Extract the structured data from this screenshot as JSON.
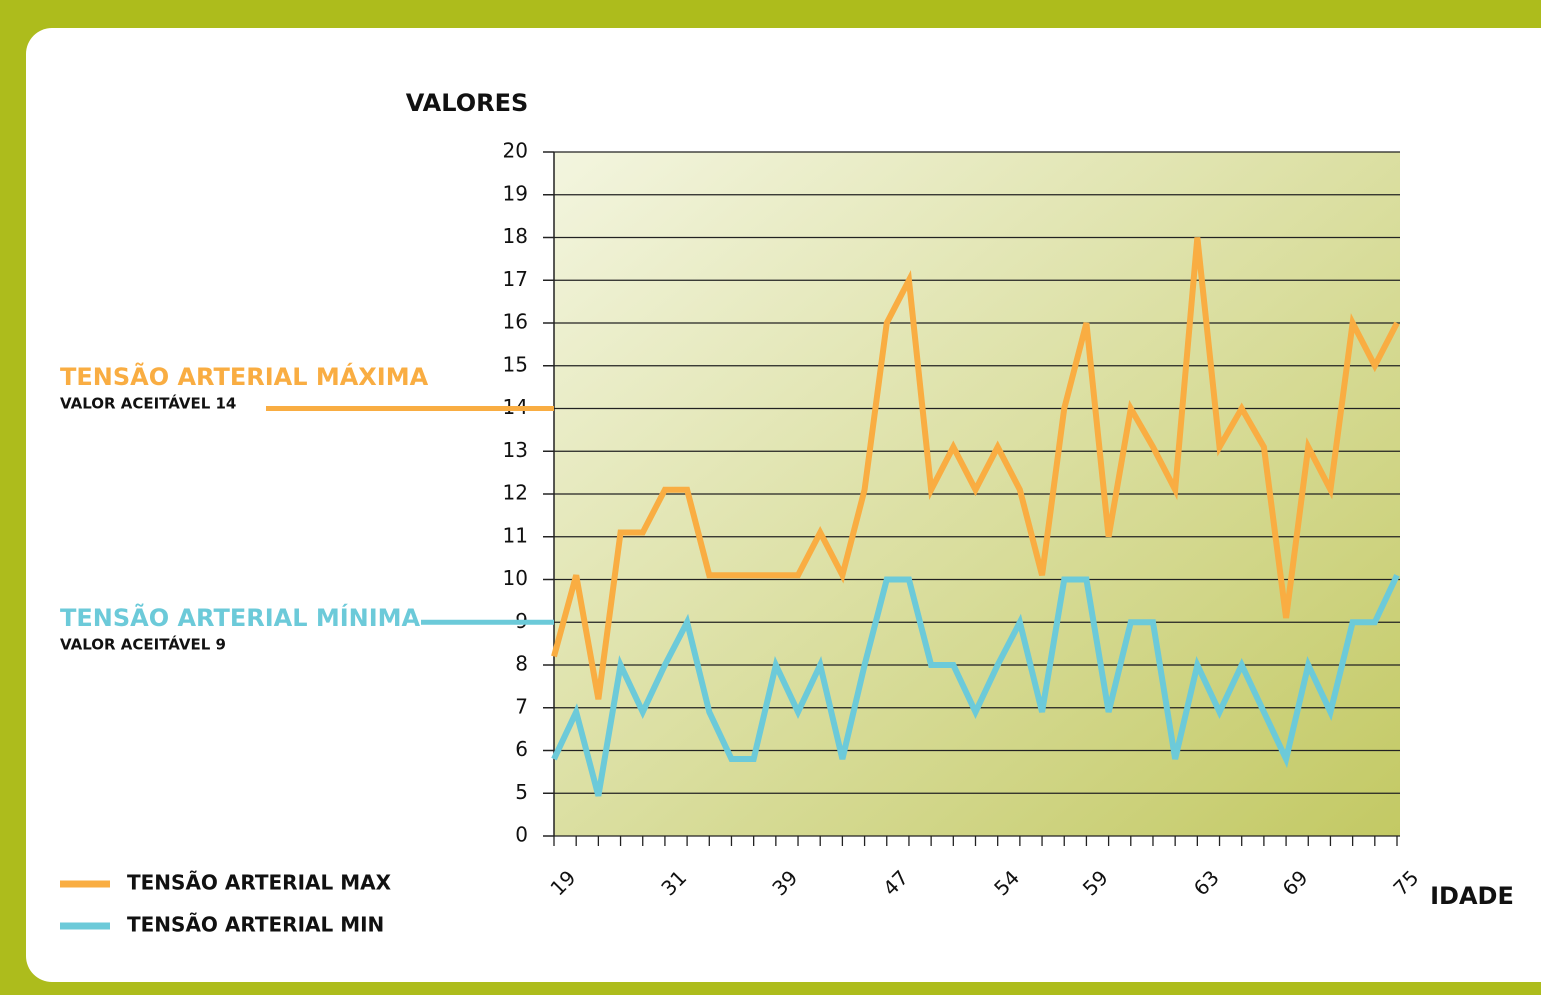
{
  "chart_data": {
    "type": "line",
    "y_label": "VALORES",
    "x_label": "IDADE",
    "categories": [
      "19",
      null,
      null,
      null,
      null,
      "31",
      null,
      null,
      null,
      null,
      "39",
      null,
      null,
      null,
      null,
      "47",
      null,
      null,
      null,
      null,
      "54",
      null,
      null,
      null,
      "59",
      null,
      null,
      null,
      null,
      "63",
      null,
      null,
      null,
      "69",
      null,
      null,
      null,
      null,
      "75"
    ],
    "series": [
      {
        "name": "TENSÃO ARTERIAL MAX",
        "color": "#f9ad42",
        "values": [
          8.2,
          10.1,
          7.2,
          11.1,
          11.1,
          12.1,
          12.1,
          10.1,
          10.1,
          10.1,
          10.1,
          10.1,
          11.1,
          10.1,
          12.1,
          16,
          17,
          12.1,
          13.1,
          12.1,
          13.1,
          12.1,
          10.1,
          14,
          16,
          11,
          14,
          13.1,
          12.1,
          18,
          13.1,
          14,
          13.1,
          9.1,
          13.1,
          12.1,
          16,
          15,
          16
        ]
      },
      {
        "name": "TENSÃO ARTERIAL MIN",
        "color": "#6ccad9",
        "values": [
          5.8,
          6.9,
          4.7,
          8,
          6.9,
          8,
          9,
          6.9,
          5.8,
          5.8,
          8,
          6.9,
          8,
          5.8,
          8,
          10,
          10,
          8,
          8,
          6.9,
          8,
          9,
          6.9,
          10,
          10,
          6.9,
          9,
          9,
          5.8,
          8,
          6.9,
          8,
          6.9,
          5.8,
          8,
          6.9,
          9,
          9,
          10.1
        ]
      }
    ],
    "reference_lines": [
      {
        "label": "TENSÃO ARTERIAL MÁXIMA",
        "sublabel": "VALOR ACEITÁVEL 14",
        "value": 14,
        "color": "#f9ad42"
      },
      {
        "label": "TENSÃO ARTERIAL MÍNIMA",
        "sublabel": "VALOR ACEITÁVEL 9",
        "value": 9,
        "color": "#6ccad9"
      }
    ],
    "ylim": [
      0,
      20
    ],
    "yticks": [
      0,
      5,
      6,
      7,
      8,
      9,
      10,
      11,
      12,
      13,
      14,
      15,
      16,
      17,
      18,
      19,
      20
    ],
    "grid": true
  }
}
